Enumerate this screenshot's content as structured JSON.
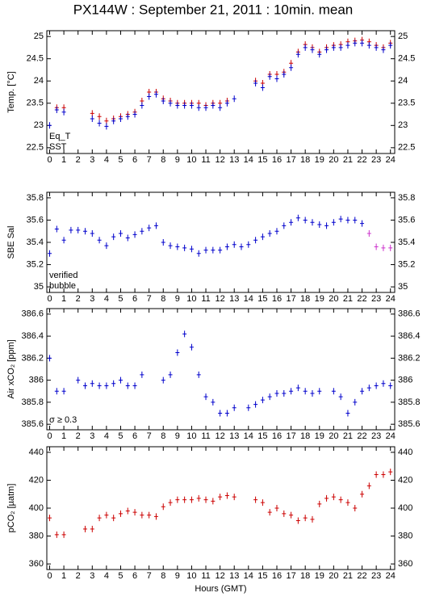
{
  "title": "PX144W : September 21, 2011 : 10min. mean",
  "chart_data": [
    {
      "type": "scatter",
      "ylabel": "Temp. [°C]",
      "x": [
        0,
        0.5,
        1,
        1.5,
        2,
        2.5,
        3,
        3.5,
        4,
        4.5,
        5,
        5.5,
        6,
        6.5,
        7,
        7.5,
        8,
        8.5,
        9,
        9.5,
        10,
        10.5,
        11,
        11.5,
        12,
        12.5,
        13,
        13.5,
        14,
        14.5,
        15,
        15.5,
        16,
        16.5,
        17,
        17.5,
        18,
        18.5,
        19,
        19.5,
        20,
        20.5,
        21,
        21.5,
        22,
        22.5,
        23,
        23.5,
        24
      ],
      "series": [
        {
          "name": "Eq_T",
          "color": "#cc0000",
          "values": [
            null,
            23.4,
            23.4,
            null,
            null,
            null,
            23.27,
            23.2,
            23.1,
            23.15,
            23.2,
            23.25,
            23.3,
            23.55,
            23.75,
            23.75,
            23.6,
            23.55,
            23.5,
            23.5,
            23.5,
            23.5,
            23.45,
            23.5,
            23.5,
            23.55,
            null,
            null,
            null,
            24.0,
            23.95,
            24.15,
            24.15,
            24.2,
            24.4,
            24.65,
            24.82,
            24.75,
            24.65,
            24.75,
            24.8,
            24.82,
            24.88,
            24.9,
            24.92,
            24.88,
            24.8,
            24.75,
            24.85
          ]
        },
        {
          "name": "SST",
          "color": "#0000cc",
          "values": [
            23.0,
            23.35,
            23.3,
            null,
            null,
            null,
            23.15,
            23.05,
            22.98,
            23.1,
            23.15,
            23.2,
            23.25,
            23.45,
            23.65,
            23.7,
            23.55,
            23.5,
            23.45,
            23.45,
            23.45,
            23.4,
            23.4,
            23.45,
            23.4,
            23.5,
            23.6,
            null,
            null,
            23.95,
            23.85,
            24.1,
            24.05,
            24.15,
            24.3,
            24.6,
            24.75,
            24.7,
            24.6,
            24.7,
            24.75,
            24.75,
            24.8,
            24.85,
            24.85,
            24.8,
            24.75,
            24.7,
            24.8
          ]
        }
      ],
      "xlim": [
        -0.2,
        24.3
      ],
      "xticks": [
        0,
        1,
        2,
        3,
        4,
        5,
        6,
        7,
        8,
        9,
        10,
        11,
        12,
        13,
        14,
        15,
        16,
        17,
        18,
        19,
        20,
        21,
        22,
        23,
        24
      ],
      "ylim": [
        22.37,
        25.13
      ],
      "yticks": [
        22.5,
        23,
        23.5,
        24,
        24.5,
        25
      ]
    },
    {
      "type": "scatter",
      "ylabel": "SBE Sal",
      "x": [
        0,
        0.5,
        1,
        1.5,
        2,
        2.5,
        3,
        3.5,
        4,
        4.5,
        5,
        5.5,
        6,
        6.5,
        7,
        7.5,
        8,
        8.5,
        9,
        9.5,
        10,
        10.5,
        11,
        11.5,
        12,
        12.5,
        13,
        13.5,
        14,
        14.5,
        15,
        15.5,
        16,
        16.5,
        17,
        17.5,
        18,
        18.5,
        19,
        19.5,
        20,
        20.5,
        21,
        21.5,
        22,
        22.5,
        23,
        23.5,
        24
      ],
      "series": [
        {
          "name": "verified",
          "color": "#0000cc",
          "values": [
            35.3,
            35.52,
            35.42,
            35.51,
            35.51,
            35.5,
            35.48,
            35.42,
            35.37,
            35.45,
            35.48,
            35.44,
            35.47,
            35.5,
            35.53,
            35.55,
            35.4,
            35.37,
            35.36,
            35.35,
            35.34,
            35.3,
            35.33,
            35.33,
            35.33,
            35.36,
            35.38,
            35.36,
            35.38,
            35.42,
            35.45,
            35.48,
            35.5,
            35.55,
            35.58,
            35.62,
            35.6,
            35.58,
            35.56,
            35.55,
            35.58,
            35.61,
            35.6,
            35.6,
            35.57,
            null,
            null,
            null,
            null
          ]
        },
        {
          "name": "bubble",
          "color": "#cc33cc",
          "values": [
            null,
            null,
            null,
            null,
            null,
            null,
            null,
            null,
            null,
            null,
            null,
            null,
            null,
            null,
            null,
            null,
            null,
            null,
            null,
            null,
            null,
            null,
            null,
            null,
            null,
            null,
            null,
            null,
            null,
            null,
            null,
            null,
            null,
            null,
            null,
            null,
            null,
            null,
            null,
            null,
            null,
            null,
            null,
            null,
            null,
            35.48,
            35.36,
            35.35,
            35.35
          ]
        }
      ],
      "xlim": [
        -0.2,
        24.3
      ],
      "xticks": [
        0,
        1,
        2,
        3,
        4,
        5,
        6,
        7,
        8,
        9,
        10,
        11,
        12,
        13,
        14,
        15,
        16,
        17,
        18,
        19,
        20,
        21,
        22,
        23,
        24
      ],
      "ylim": [
        34.95,
        35.85
      ],
      "yticks": [
        35,
        35.2,
        35.4,
        35.6,
        35.8
      ]
    },
    {
      "type": "scatter",
      "ylabel": "Air xCO₂ [ppm]",
      "annotation": "σ ≥ 0.3",
      "x": [
        0,
        0.5,
        1,
        1.5,
        2,
        2.5,
        3,
        3.5,
        4,
        4.5,
        5,
        5.5,
        6,
        6.5,
        7,
        7.5,
        8,
        8.5,
        9,
        9.5,
        10,
        10.5,
        11,
        11.5,
        12,
        12.5,
        13,
        13.5,
        14,
        14.5,
        15,
        15.5,
        16,
        16.5,
        17,
        17.5,
        18,
        18.5,
        19,
        19.5,
        20,
        20.5,
        21,
        21.5,
        22,
        22.5,
        23,
        23.5,
        24
      ],
      "series": [
        {
          "name": "Air xCO₂",
          "color": "#0000cc",
          "values": [
            386.2,
            385.9,
            385.9,
            null,
            386.0,
            385.95,
            385.97,
            385.95,
            385.95,
            385.97,
            386.0,
            385.95,
            385.95,
            386.05,
            null,
            null,
            386.0,
            386.05,
            386.25,
            386.42,
            386.3,
            386.05,
            385.85,
            385.8,
            385.7,
            385.7,
            385.75,
            null,
            385.75,
            385.78,
            385.82,
            385.85,
            385.88,
            385.88,
            385.9,
            385.93,
            385.9,
            385.88,
            385.9,
            null,
            385.9,
            385.85,
            385.7,
            385.8,
            385.9,
            385.93,
            385.95,
            385.97,
            385.95
          ]
        }
      ],
      "xlim": [
        -0.2,
        24.3
      ],
      "xticks": [
        0,
        1,
        2,
        3,
        4,
        5,
        6,
        7,
        8,
        9,
        10,
        11,
        12,
        13,
        14,
        15,
        16,
        17,
        18,
        19,
        20,
        21,
        22,
        23,
        24
      ],
      "ylim": [
        385.55,
        386.65
      ],
      "yticks": [
        385.6,
        385.8,
        386,
        386.2,
        386.4,
        386.6
      ]
    },
    {
      "type": "scatter",
      "ylabel": "pCO₂ [µatm]",
      "xlabel": "Hours (GMT)",
      "x": [
        0,
        0.5,
        1,
        1.5,
        2,
        2.5,
        3,
        3.5,
        4,
        4.5,
        5,
        5.5,
        6,
        6.5,
        7,
        7.5,
        8,
        8.5,
        9,
        9.5,
        10,
        10.5,
        11,
        11.5,
        12,
        12.5,
        13,
        13.5,
        14,
        14.5,
        15,
        15.5,
        16,
        16.5,
        17,
        17.5,
        18,
        18.5,
        19,
        19.5,
        20,
        20.5,
        21,
        21.5,
        22,
        22.5,
        23,
        23.5,
        24
      ],
      "series": [
        {
          "name": "pCO₂",
          "color": "#cc0000",
          "values": [
            393,
            381,
            381,
            null,
            null,
            385,
            385,
            393,
            395,
            393,
            396,
            398,
            397,
            395,
            395,
            394,
            401,
            404,
            406,
            406,
            406,
            407,
            406,
            405,
            408,
            409,
            408,
            null,
            null,
            406,
            404,
            397,
            400,
            396,
            395,
            391,
            393,
            392,
            403,
            407,
            408,
            406,
            404,
            400,
            410,
            416,
            424,
            424,
            426
          ]
        }
      ],
      "xlim": [
        -0.2,
        24.3
      ],
      "xticks": [
        0,
        1,
        2,
        3,
        4,
        5,
        6,
        7,
        8,
        9,
        10,
        11,
        12,
        13,
        14,
        15,
        16,
        17,
        18,
        19,
        20,
        21,
        22,
        23,
        24
      ],
      "ylim": [
        356,
        444
      ],
      "yticks": [
        360,
        380,
        400,
        420,
        440
      ]
    }
  ]
}
